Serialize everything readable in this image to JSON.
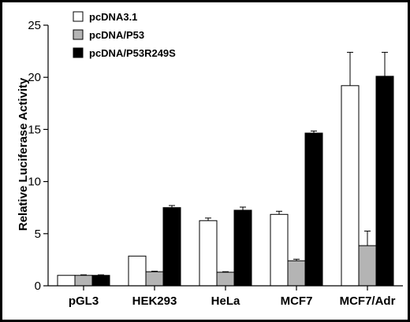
{
  "chart_data": {
    "type": "bar",
    "title": "",
    "xlabel": "",
    "ylabel": "Relative Luciferase Activity",
    "ylim": [
      0,
      25
    ],
    "yticks": [
      0,
      5,
      10,
      15,
      20,
      25
    ],
    "grid": false,
    "legend_position": "top-left",
    "categories": [
      "pGL3",
      "HEK293",
      "HeLa",
      "MCF7",
      "MCF7/Adr"
    ],
    "series": [
      {
        "name": "pcDNA3.1",
        "color": "#ffffff",
        "values": [
          1.0,
          2.85,
          6.25,
          6.85,
          19.2
        ],
        "errors": [
          0.0,
          0.0,
          0.25,
          0.3,
          3.2
        ]
      },
      {
        "name": "pcDNA/P53",
        "color": "#b4b4b4",
        "values": [
          1.0,
          1.35,
          1.3,
          2.4,
          3.85
        ],
        "errors": [
          0.05,
          0.05,
          0.05,
          0.15,
          1.4
        ]
      },
      {
        "name": "pcDNA/P53R249S",
        "color": "#000000",
        "values": [
          1.0,
          7.5,
          7.25,
          14.65,
          20.1
        ],
        "errors": [
          0.05,
          0.2,
          0.3,
          0.2,
          2.3
        ]
      }
    ]
  }
}
